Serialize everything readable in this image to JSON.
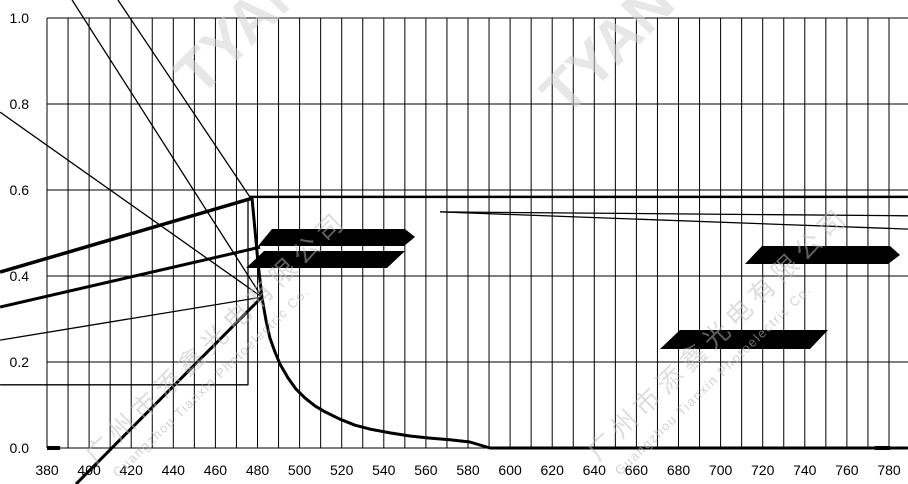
{
  "chart_data": {
    "type": "line",
    "xlim": [
      380,
      780
    ],
    "ylim": [
      0,
      1.0
    ],
    "x_tick_labels": [
      "380",
      "400",
      "420",
      "440",
      "460",
      "480",
      "500",
      "520",
      "540",
      "560",
      "580",
      "600",
      "620",
      "640",
      "660",
      "680",
      "700",
      "720",
      "740",
      "760",
      "780"
    ],
    "y_tick_labels": [
      "1.0",
      "0.8",
      "0.6",
      "0.4",
      "0.2",
      "0.0"
    ],
    "x_grid_step": 10,
    "y_grid_step": 0.2,
    "grid": true,
    "legend": "none",
    "series": [
      {
        "points": [
          [
            357.7,
            0.409
          ],
          [
            476.9,
            0.58
          ]
        ]
      },
      {
        "points": [
          [
            357.7,
            0.328
          ],
          [
            481.2,
            0.467
          ]
        ]
      },
      {
        "points": [
          [
            357.7,
            0.251
          ],
          [
            482.1,
            0.351
          ]
        ]
      },
      {
        "points": [
          [
            357.7,
            0.781
          ],
          [
            482.1,
            0.351
          ]
        ]
      },
      {
        "points": [
          [
            391.9,
            1.042
          ],
          [
            482.1,
            0.351
          ]
        ]
      },
      {
        "points": [
          [
            413.7,
            1.042
          ],
          [
            476.9,
            0.58
          ]
        ]
      },
      {
        "points": [
          [
            482.1,
            0.351
          ],
          [
            393.8,
            -0.084
          ]
        ]
      },
      {
        "points": [
          [
            357.7,
            0.147
          ],
          [
            475.5,
            0.147
          ],
          [
            475.5,
            0.58
          ]
        ]
      },
      {
        "points": [
          [
            476.4,
            0.584
          ],
          [
            789.0,
            0.584
          ]
        ]
      },
      {
        "points": [
          [
            477.4,
            0.581
          ],
          [
            478.8,
            0.507
          ],
          [
            480.2,
            0.433
          ],
          [
            482.1,
            0.351
          ],
          [
            484.0,
            0.298
          ],
          [
            485.9,
            0.256
          ],
          [
            488.3,
            0.223
          ],
          [
            490.7,
            0.195
          ],
          [
            494.5,
            0.163
          ],
          [
            498.3,
            0.137
          ],
          [
            502.6,
            0.116
          ],
          [
            507.3,
            0.098
          ],
          [
            512.1,
            0.084
          ],
          [
            519.2,
            0.067
          ],
          [
            526.3,
            0.053
          ],
          [
            533.4,
            0.044
          ],
          [
            543.0,
            0.035
          ],
          [
            552.4,
            0.028
          ],
          [
            561.9,
            0.023
          ],
          [
            571.4,
            0.019
          ],
          [
            580.9,
            0.014
          ],
          [
            590.4,
            0.0
          ],
          [
            789.0,
            0.0
          ]
        ]
      },
      {
        "points": [
          [
            566.7,
            0.549
          ],
          [
            789.0,
            0.54
          ]
        ]
      },
      {
        "points": [
          [
            566.7,
            0.549
          ],
          [
            789.0,
            0.509
          ]
        ]
      },
      {
        "points": [
          [
            380.0,
            0.0
          ],
          [
            386.2,
            0.0
          ]
        ]
      },
      {
        "points": [
          [
            773.3,
            0.0
          ],
          [
            780.5,
            0.0
          ]
        ]
      }
    ]
  },
  "watermarks": {
    "brand": "TYAN",
    "company_cn": "广州市添鑫光电有限公司",
    "company_en": "Guangzhou Tianxin Photoelectric Co."
  },
  "colors": {
    "background": "#ffffff",
    "lines": "#000000",
    "label_boxes": "#000000",
    "watermark": "#d4d4d4"
  }
}
